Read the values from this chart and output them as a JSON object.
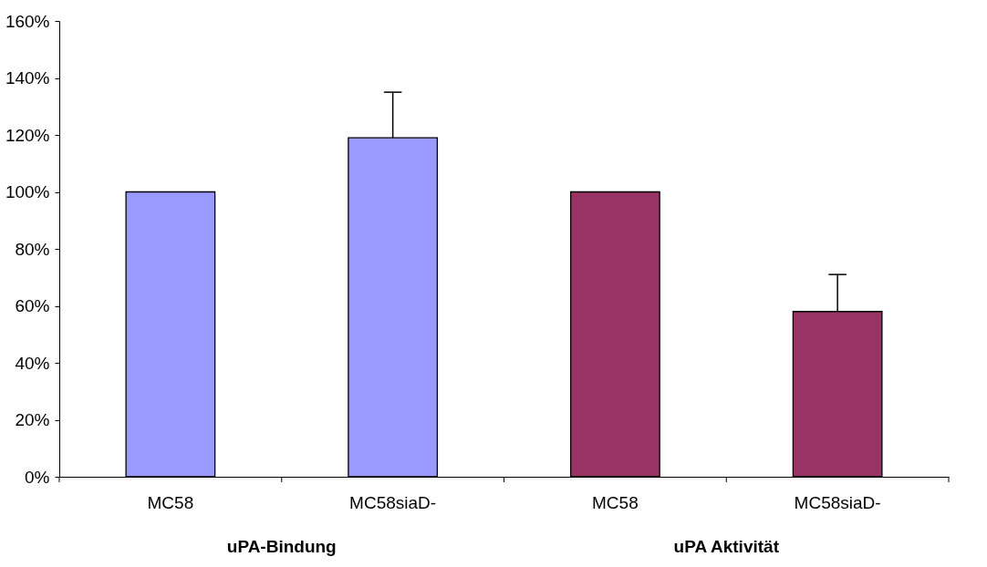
{
  "chart_data": {
    "type": "bar",
    "categories": [
      "MC58",
      "MC58siaD-",
      "MC58",
      "MC58siaD-"
    ],
    "values": [
      100,
      119,
      100,
      58
    ],
    "colors": [
      "#9999ff",
      "#9999ff",
      "#993366",
      "#993366"
    ],
    "errors": [
      null,
      [
        119,
        135
      ],
      null,
      [
        58,
        71
      ]
    ],
    "ylim": [
      0,
      160
    ],
    "yticks": [
      {
        "value": 0,
        "label": "0%"
      },
      {
        "value": 20,
        "label": "20%"
      },
      {
        "value": 40,
        "label": "40%"
      },
      {
        "value": 60,
        "label": "60%"
      },
      {
        "value": 80,
        "label": "80%"
      },
      {
        "value": 100,
        "label": "100%"
      },
      {
        "value": 120,
        "label": "120%"
      },
      {
        "value": 140,
        "label": "140%"
      },
      {
        "value": 160,
        "label": "160%"
      }
    ],
    "annotations": [
      "uPA-Bindung",
      "uPA Aktivität"
    ],
    "grid": false
  }
}
